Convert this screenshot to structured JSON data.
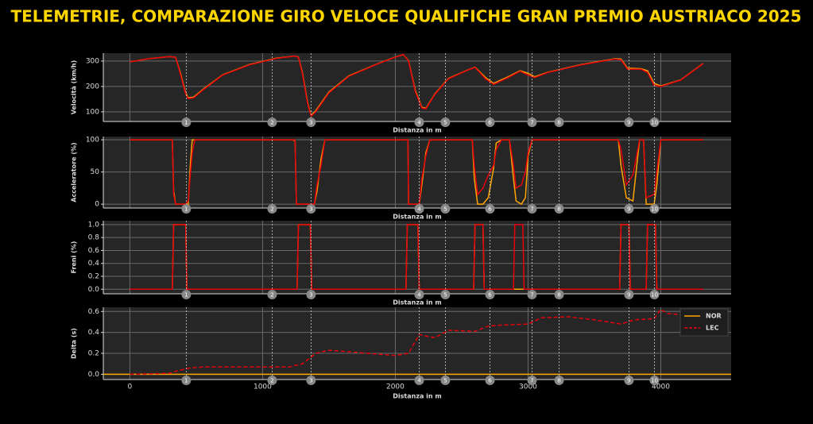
{
  "title": "TELEMETRIE, COMPARAZIONE GIRO VELOCE QUALIFICHE GRAN PREMIO AUSTRIACO 2025",
  "corners": {
    "labels": [
      1,
      2,
      3,
      4,
      5,
      6,
      7,
      8,
      9,
      10
    ],
    "x": [
      425,
      1072,
      1365,
      2180,
      2377,
      2713,
      3030,
      3234,
      3760,
      3952
    ]
  },
  "chart_data": [
    {
      "type": "line",
      "ylabel": "Velocità (km/h)",
      "xlabel": "Distanza in m",
      "xlim": [
        -200,
        4530
      ],
      "xticks": [
        0,
        1000,
        2000,
        3000,
        4000
      ],
      "ylim": [
        62,
        331
      ],
      "yticks": [
        100,
        200,
        300
      ],
      "grid": true,
      "x": [
        0,
        150,
        300,
        345,
        380,
        420,
        440,
        480,
        560,
        700,
        900,
        1100,
        1240,
        1270,
        1300,
        1340,
        1365,
        1400,
        1500,
        1650,
        1850,
        2000,
        2060,
        2100,
        2150,
        2200,
        2230,
        2300,
        2400,
        2550,
        2600,
        2680,
        2740,
        2850,
        2940,
        3000,
        3050,
        3150,
        3400,
        3650,
        3700,
        3750,
        3850,
        3900,
        3950,
        4000,
        4150,
        4320
      ],
      "series": [
        {
          "name": "NOR",
          "color": "#ffa500",
          "values": [
            297,
            310,
            318,
            315,
            255,
            175,
            155,
            158,
            192,
            246,
            286,
            311,
            320,
            316,
            255,
            135,
            85,
            104,
            178,
            242,
            286,
            316,
            325,
            302,
            185,
            118,
            114,
            172,
            232,
            266,
            276,
            235,
            212,
            238,
            262,
            252,
            238,
            256,
            286,
            309,
            308,
            272,
            270,
            262,
            212,
            202,
            226,
            291
          ]
        },
        {
          "name": "LEC",
          "color": "#e8000b",
          "values": [
            297,
            310,
            318,
            315,
            250,
            170,
            152,
            155,
            190,
            245,
            285,
            310,
            320,
            315,
            250,
            130,
            82,
            100,
            175,
            240,
            285,
            315,
            326,
            300,
            180,
            115,
            112,
            170,
            230,
            265,
            275,
            230,
            208,
            235,
            260,
            245,
            235,
            255,
            285,
            308,
            305,
            268,
            268,
            255,
            205,
            200,
            225,
            290
          ]
        }
      ]
    },
    {
      "type": "line",
      "ylabel": "Acceleratore (%)",
      "xlabel": "Distanza in m",
      "xlim": [
        -200,
        4530
      ],
      "xticks": [
        0,
        1000,
        2000,
        3000,
        4000
      ],
      "ylim": [
        -6,
        105
      ],
      "yticks": [
        0,
        50,
        100
      ],
      "grid": true,
      "x": [
        0,
        320,
        330,
        345,
        420,
        440,
        455,
        470,
        490,
        1230,
        1245,
        1255,
        1390,
        1410,
        1440,
        1470,
        2080,
        2095,
        2100,
        2180,
        2200,
        2230,
        2260,
        2580,
        2595,
        2620,
        2660,
        2700,
        2740,
        2760,
        2800,
        2860,
        2890,
        2910,
        2950,
        2980,
        3000,
        3030,
        3060,
        3680,
        3700,
        3740,
        3790,
        3840,
        3870,
        3890,
        3950,
        3970,
        4000,
        4320
      ],
      "series": [
        {
          "name": "NOR",
          "color": "#ffa500",
          "values": [
            100,
            100,
            20,
            0,
            0,
            0,
            60,
            100,
            100,
            100,
            98,
            0,
            0,
            20,
            70,
            100,
            100,
            100,
            0,
            0,
            30,
            80,
            100,
            100,
            40,
            0,
            0,
            10,
            55,
            95,
            100,
            100,
            40,
            5,
            0,
            10,
            75,
            100,
            100,
            100,
            60,
            10,
            5,
            100,
            100,
            0,
            0,
            30,
            100,
            100
          ]
        },
        {
          "name": "LEC",
          "color": "#e8000b",
          "values": [
            100,
            100,
            15,
            0,
            0,
            5,
            45,
            80,
            100,
            100,
            100,
            0,
            0,
            30,
            60,
            100,
            100,
            100,
            0,
            0,
            40,
            75,
            100,
            100,
            60,
            15,
            25,
            45,
            60,
            85,
            100,
            100,
            60,
            25,
            30,
            50,
            80,
            100,
            100,
            100,
            85,
            30,
            45,
            100,
            100,
            10,
            15,
            50,
            100,
            100
          ]
        }
      ]
    },
    {
      "type": "line",
      "ylabel": "Freni (%)",
      "xlabel": "Distanza in m",
      "xlim": [
        -200,
        4530
      ],
      "xticks": [
        0,
        1000,
        2000,
        3000,
        4000
      ],
      "ylim": [
        -0.07,
        1.06
      ],
      "yticks": [
        {
          "value": 0,
          "label": "0.0"
        },
        0.2,
        0.4,
        0.6,
        0.8,
        {
          "value": 1,
          "label": "1.0"
        }
      ],
      "grid": true,
      "x": [
        0,
        320,
        330,
        420,
        430,
        1260,
        1270,
        1360,
        1370,
        2080,
        2090,
        2170,
        2180,
        2590,
        2600,
        2660,
        2670,
        2890,
        2900,
        2960,
        2970,
        3690,
        3700,
        3760,
        3770,
        3890,
        3900,
        3960,
        3970,
        4320
      ],
      "series": [
        {
          "name": "NOR",
          "color": "#ffa500",
          "values": [
            0,
            0,
            1,
            1,
            0,
            0,
            1,
            1,
            0,
            0,
            1,
            1,
            0,
            0,
            1,
            1,
            0,
            0,
            0,
            0,
            0,
            0,
            1,
            1,
            0,
            0,
            1,
            1,
            0,
            0
          ]
        },
        {
          "name": "LEC",
          "color": "#e8000b",
          "values": [
            0,
            0,
            1,
            1,
            0,
            0,
            1,
            1,
            0,
            0,
            1,
            1,
            0,
            0,
            1,
            1,
            0,
            0,
            1,
            1,
            0,
            0,
            1,
            1,
            0,
            0,
            1,
            1,
            0,
            0
          ]
        }
      ]
    },
    {
      "type": "line",
      "ylabel": "Delta (s)",
      "xlabel": "Distanza in m",
      "xlim": [
        -200,
        4530
      ],
      "xticks": [
        0,
        1000,
        2000,
        3000,
        4000
      ],
      "ylim": [
        -0.05,
        0.64
      ],
      "yticks": [
        {
          "value": 0,
          "label": "0.0"
        },
        0.2,
        0.4,
        0.6
      ],
      "grid": true,
      "legend": "upper right",
      "series": [
        {
          "name": "NOR",
          "color": "#ffa500",
          "dashed": false,
          "x": [
            -200,
            4530
          ],
          "values": [
            0,
            0
          ]
        },
        {
          "name": "LEC",
          "color": "#e8000b",
          "dashed": true,
          "x": [
            0,
            300,
            350,
            450,
            550,
            800,
            1200,
            1300,
            1350,
            1400,
            1500,
            1700,
            2000,
            2100,
            2180,
            2250,
            2300,
            2400,
            2600,
            2700,
            2800,
            3000,
            3100,
            3300,
            3500,
            3700,
            3800,
            3950,
            4000,
            4050,
            4150,
            4320
          ],
          "values": [
            0,
            0.01,
            0.03,
            0.06,
            0.07,
            0.07,
            0.07,
            0.1,
            0.15,
            0.2,
            0.23,
            0.21,
            0.18,
            0.2,
            0.38,
            0.36,
            0.35,
            0.42,
            0.41,
            0.46,
            0.47,
            0.48,
            0.54,
            0.55,
            0.52,
            0.48,
            0.52,
            0.53,
            0.62,
            0.58,
            0.57,
            0.55
          ]
        }
      ]
    }
  ]
}
